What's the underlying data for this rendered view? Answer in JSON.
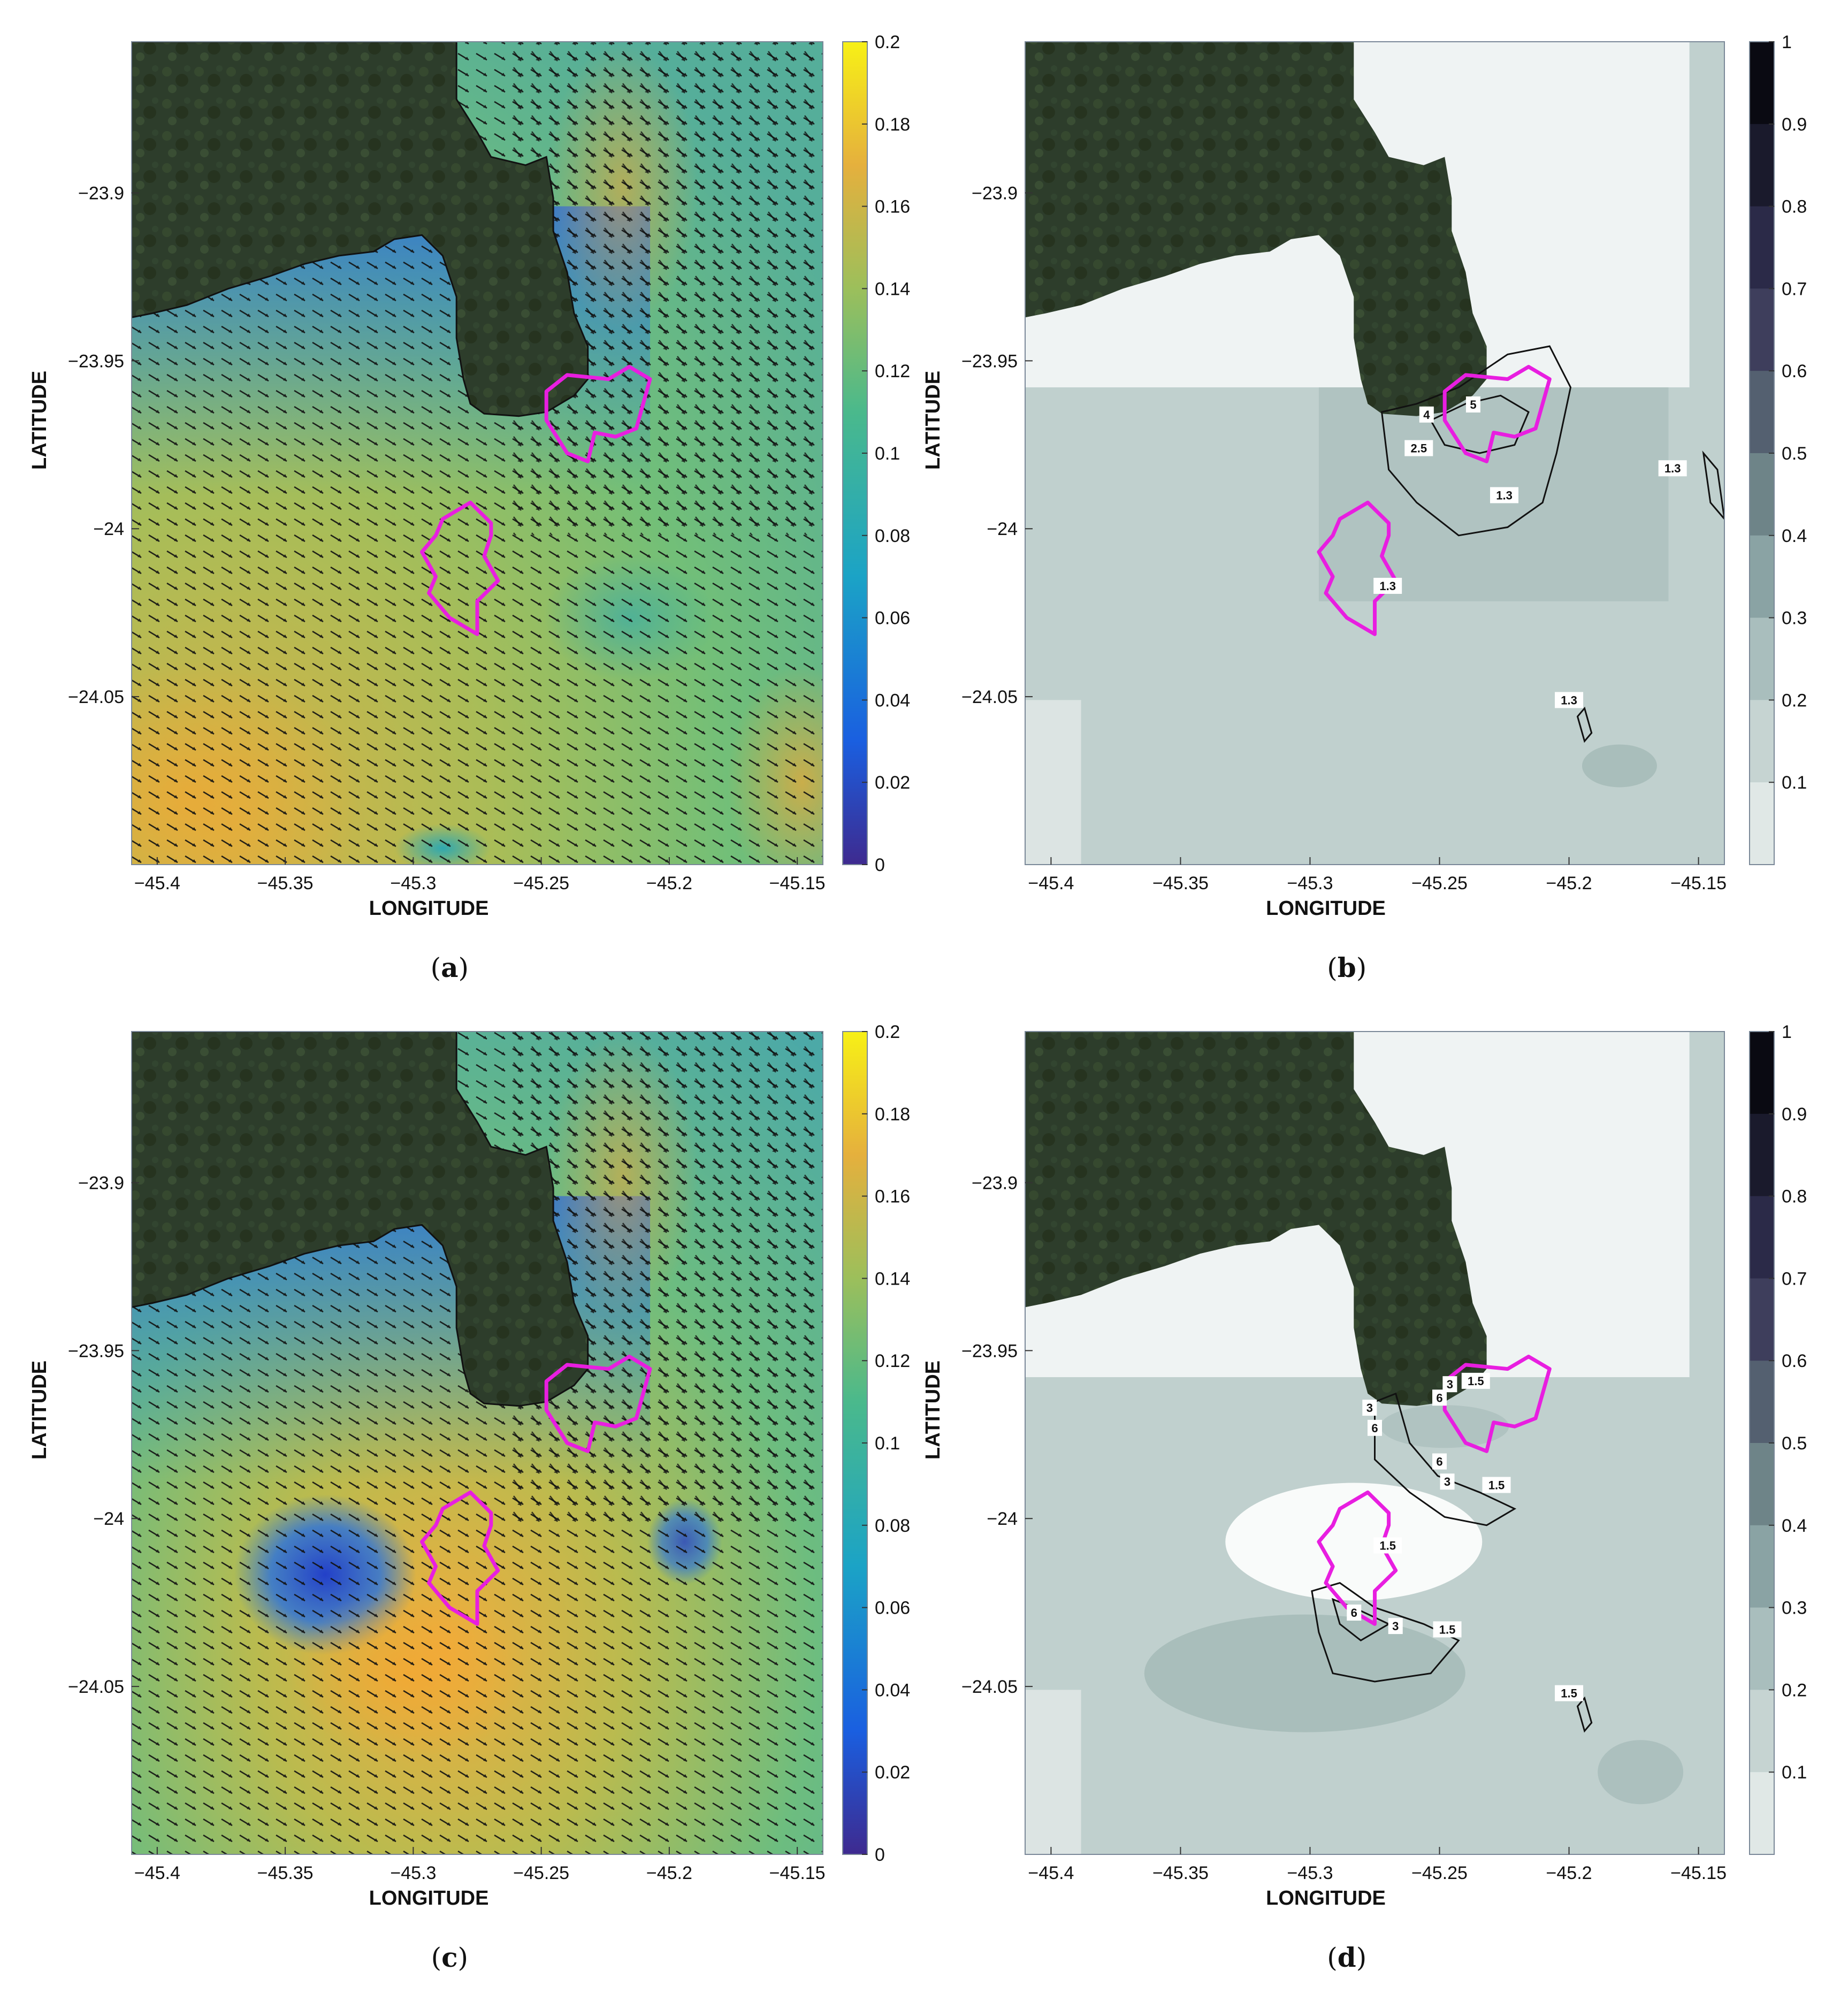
{
  "axis_titles": {
    "x": "LONGITUDE",
    "y": "LATITUDE"
  },
  "x_ticks": [
    "-45.4",
    "-45.35",
    "-45.3",
    "-45.25",
    "-45.2",
    "-45.15"
  ],
  "y_ticks": [
    "-23.9",
    "-23.95",
    "-24",
    "-24.05"
  ],
  "colorbar_velocity_ticks": [
    "0.2",
    "0.18",
    "0.16",
    "0.14",
    "0.12",
    "0.1",
    "0.08",
    "0.06",
    "0.04",
    "0.02",
    "0"
  ],
  "colorbar_probability_ticks": [
    "1",
    "0.9",
    "0.8",
    "0.7",
    "0.6",
    "0.5",
    "0.4",
    "0.3",
    "0.2",
    "0.1"
  ],
  "colors": {
    "polygon": "#e81ee0",
    "land": "#2b3b2a",
    "velocity_low": "#3d2d9a",
    "velocity_mid": "#3aa6c8",
    "velocity_green": "#74c17a",
    "velocity_high": "#f2b53c",
    "prob_light": "#dce4e3",
    "prob_mid": "#c0d0ce",
    "prob_dark": "#9fb6b4"
  },
  "panels": [
    {
      "id": "a",
      "type": "velocity",
      "caption_letter": "a",
      "contour_labels": []
    },
    {
      "id": "b",
      "type": "probability",
      "caption_letter": "b",
      "contour_labels": [
        {
          "text": "4",
          "lon": -45.255,
          "lat": -23.966
        },
        {
          "text": "5",
          "lon": -45.237,
          "lat": -23.963
        },
        {
          "text": "2.5",
          "lon": -45.258,
          "lat": -23.976
        },
        {
          "text": "1.3",
          "lon": -45.225,
          "lat": -23.99
        },
        {
          "text": "1.3",
          "lon": -45.16,
          "lat": -23.982
        },
        {
          "text": "1.3",
          "lon": -45.27,
          "lat": -24.017
        },
        {
          "text": "1.3",
          "lon": -45.2,
          "lat": -24.051
        }
      ]
    },
    {
      "id": "c",
      "type": "velocity",
      "caption_letter": "c",
      "contour_labels": []
    },
    {
      "id": "d",
      "type": "probability",
      "caption_letter": "d",
      "contour_labels": [
        {
          "text": "3",
          "lon": -45.246,
          "lat": -23.96
        },
        {
          "text": "1.5",
          "lon": -45.236,
          "lat": -23.959
        },
        {
          "text": "6",
          "lon": -45.25,
          "lat": -23.964
        },
        {
          "text": "3",
          "lon": -45.277,
          "lat": -23.967
        },
        {
          "text": "6",
          "lon": -45.275,
          "lat": -23.973
        },
        {
          "text": "6",
          "lon": -45.25,
          "lat": -23.983
        },
        {
          "text": "3",
          "lon": -45.247,
          "lat": -23.989
        },
        {
          "text": "1.5",
          "lon": -45.228,
          "lat": -23.99
        },
        {
          "text": "1.5",
          "lon": -45.27,
          "lat": -24.008
        },
        {
          "text": "6",
          "lon": -45.283,
          "lat": -24.028
        },
        {
          "text": "3",
          "lon": -45.267,
          "lat": -24.032
        },
        {
          "text": "1.5",
          "lon": -45.247,
          "lat": -24.033
        },
        {
          "text": "1.5",
          "lon": -45.2,
          "lat": -24.052
        }
      ]
    }
  ]
}
